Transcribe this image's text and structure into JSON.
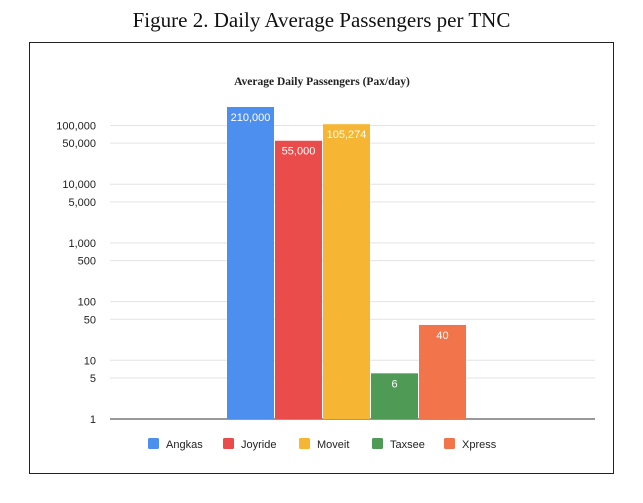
{
  "figure_title": "Figure 2.  Daily Average Passengers per TNC",
  "chart_data": {
    "type": "bar",
    "title": "Average Daily Passengers (Pax/day)",
    "scale": "log",
    "ylim": [
      1,
      210000
    ],
    "grid": true,
    "legend_position": "bottom",
    "y_ticks": [
      {
        "value": 100000,
        "label": "100,000"
      },
      {
        "value": 50000,
        "label": "50,000"
      },
      {
        "value": 10000,
        "label": "10,000"
      },
      {
        "value": 5000,
        "label": "5,000"
      },
      {
        "value": 1000,
        "label": "1,000"
      },
      {
        "value": 500,
        "label": "500"
      },
      {
        "value": 100,
        "label": "100"
      },
      {
        "value": 50,
        "label": "50"
      },
      {
        "value": 10,
        "label": "10"
      },
      {
        "value": 5,
        "label": "5"
      },
      {
        "value": 1,
        "label": "1"
      }
    ],
    "series": [
      {
        "name": "Angkas",
        "value": 210000,
        "label": "210,000",
        "color": "#4d8fef"
      },
      {
        "name": "Joyride",
        "value": 55000,
        "label": "55,000",
        "color": "#ea4b4b"
      },
      {
        "name": "Moveit",
        "value": 105274,
        "label": "105,274",
        "color": "#f6b532"
      },
      {
        "name": "Taxsee",
        "value": 6,
        "label": "6",
        "color": "#4f9a55"
      },
      {
        "name": "Xpress",
        "value": 40,
        "label": "40",
        "color": "#f2744a"
      }
    ]
  }
}
